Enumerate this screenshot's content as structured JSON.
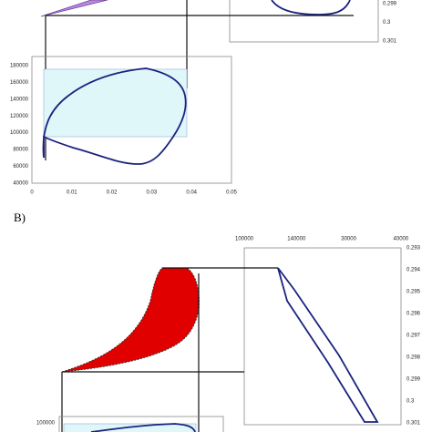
{
  "panel_a": {
    "inset_right_ticks": [
      "0.299",
      "0.3",
      "0.301"
    ],
    "chart_y_ticks": [
      "180000",
      "160000",
      "140000",
      "120000",
      "100000",
      "80000",
      "60000",
      "40000"
    ],
    "chart_x_ticks": [
      "0",
      "0.01",
      "0.02",
      "0.03",
      "0.04",
      "0.05"
    ]
  },
  "panel_b": {
    "label": "B)",
    "inset_top_ticks": [
      "100000",
      "140000",
      "30000",
      "40000"
    ],
    "inset_right_ticks": [
      "0.293",
      "0.294",
      "0.295",
      "0.296",
      "0.297",
      "0.298",
      "0.299",
      "0.3",
      "0.301"
    ],
    "chart_y_ticks": [
      "100000"
    ]
  }
}
